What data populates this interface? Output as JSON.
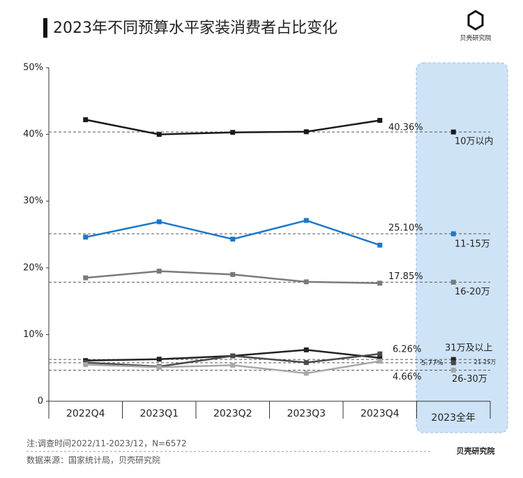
{
  "chart_data": {
    "type": "line",
    "title": "2023年不同预算水平家装消费者占比变化",
    "logo": "贝壳研究院",
    "categories": [
      "2022Q4",
      "2023Q1",
      "2023Q2",
      "2023Q3",
      "2023Q4"
    ],
    "annual_category": "2023全年",
    "ylim": [
      0,
      50
    ],
    "yticks": [
      0,
      {
        "value": 10,
        "label": "10%"
      },
      {
        "value": 20,
        "label": "20%"
      },
      {
        "value": 30,
        "label": "30%"
      },
      {
        "value": 40,
        "label": "40%"
      },
      {
        "value": 50,
        "label": "50%"
      }
    ],
    "series": [
      {
        "name": "10万以内",
        "color": "#1a1a1a",
        "values": [
          42.2,
          40.0,
          40.3,
          40.4,
          42.1
        ],
        "annual_value": 40.36,
        "annual_label": "40.36%"
      },
      {
        "name": "11-15万",
        "color": "#1f77c8",
        "values": [
          24.6,
          26.9,
          24.3,
          27.1,
          23.4
        ],
        "annual_value": 25.1,
        "annual_label": "25.10%"
      },
      {
        "name": "16-20万",
        "color": "#7a7a7a",
        "values": [
          18.5,
          19.5,
          19.0,
          17.9,
          17.7
        ],
        "annual_value": 17.85,
        "annual_label": "17.85%"
      },
      {
        "name": "31万及以上",
        "color": "#222222",
        "values": [
          6.1,
          6.3,
          6.8,
          7.7,
          6.5
        ],
        "annual_value": 6.26,
        "annual_label": "6.26%"
      },
      {
        "name": "21-25万",
        "color": "#4a4a4a",
        "values": [
          5.8,
          5.2,
          6.8,
          5.8,
          7.1
        ],
        "annual_value": 5.77,
        "annual_label": "5.77%"
      },
      {
        "name": "26-30万",
        "color": "#a8a8a8",
        "values": [
          5.5,
          5.1,
          5.4,
          4.2,
          6.0
        ],
        "annual_value": 4.66,
        "annual_label": "4.66%"
      }
    ],
    "note": "注:调查时间2022/11-2023/12，N=6572",
    "source": "数据来源：国家统计局，贝壳研究院"
  }
}
